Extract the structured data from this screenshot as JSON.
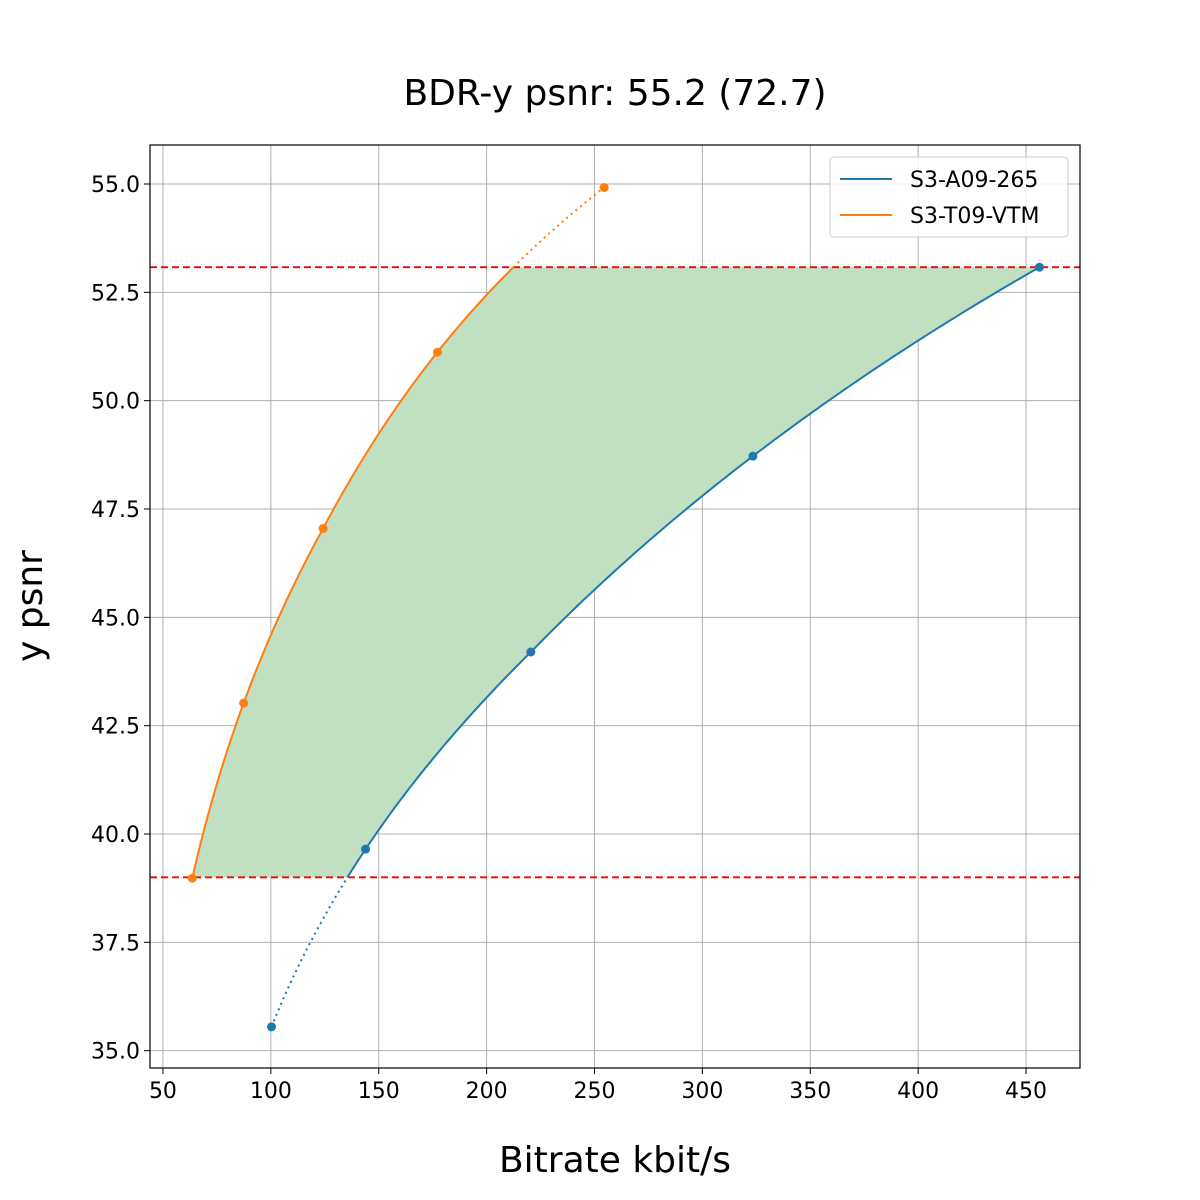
{
  "chart_data": {
    "type": "line",
    "title": "BDR-y psnr: 55.2 (72.7)",
    "xlabel": "Bitrate kbit/s",
    "ylabel": "y psnr",
    "xlim": [
      44,
      475
    ],
    "ylim": [
      34.6,
      55.9
    ],
    "xticks": [
      50,
      100,
      150,
      200,
      250,
      300,
      350,
      400,
      450
    ],
    "yticks": [
      35.0,
      37.5,
      40.0,
      42.5,
      45.0,
      47.5,
      50.0,
      52.5,
      55.0
    ],
    "ytick_labels": [
      "35.0",
      "37.5",
      "40.0",
      "42.5",
      "45.0",
      "47.5",
      "50.0",
      "52.5",
      "55.0"
    ],
    "grid": true,
    "legend_position": "top-right",
    "series": [
      {
        "name": "S3-A09-265",
        "color": "#1f77b4",
        "x": [
          100.3,
          143.9,
          220.5,
          323.4,
          456.2
        ],
        "y": [
          35.55,
          39.65,
          44.2,
          48.72,
          53.08
        ]
      },
      {
        "name": "S3-T09-VTM",
        "color": "#ff7f0e",
        "x": [
          63.6,
          87.4,
          124.2,
          177.2,
          254.5
        ],
        "y": [
          38.98,
          43.02,
          47.05,
          51.12,
          54.92
        ]
      }
    ],
    "reference_lines": {
      "y": [
        39.0,
        53.08
      ],
      "color": "#ff0000",
      "style": "dashed"
    },
    "fill_color": "#c1dfc1"
  }
}
